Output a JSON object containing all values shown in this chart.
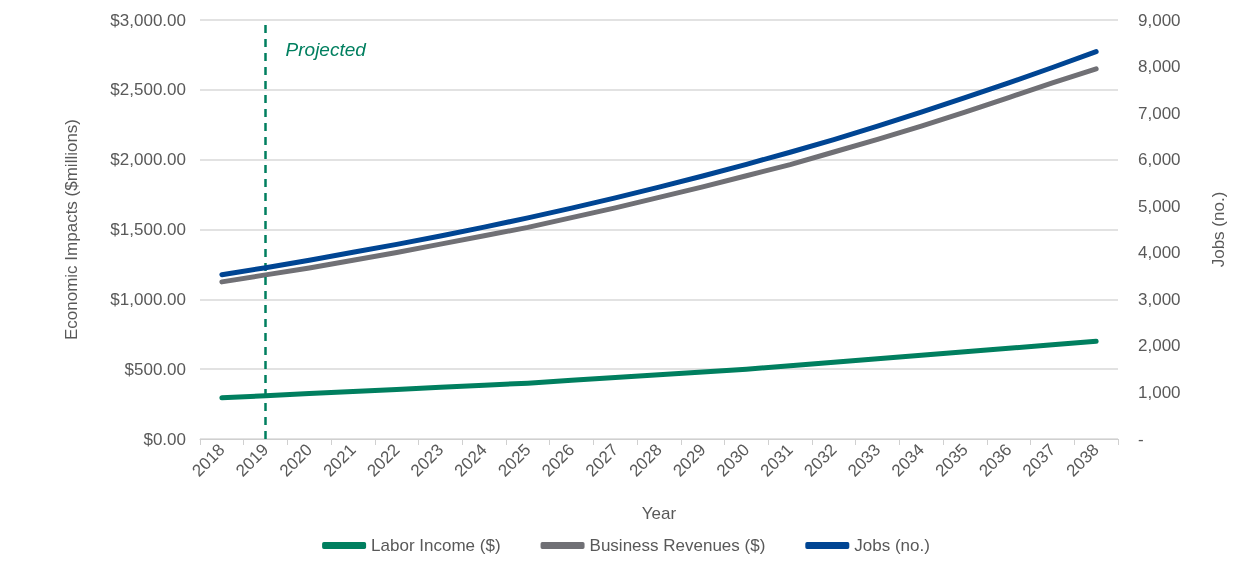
{
  "chart_data": {
    "type": "line",
    "xlabel": "Year",
    "ylabel": "Economic Impacts ($millions)",
    "y2label": "Jobs (no.)",
    "categories": [
      "2018",
      "2019",
      "2020",
      "2021",
      "2022",
      "2023",
      "2024",
      "2025",
      "2026",
      "2027",
      "2028",
      "2029",
      "2030",
      "2031",
      "2032",
      "2033",
      "2034",
      "2035",
      "2036",
      "2037",
      "2038"
    ],
    "series": [
      {
        "name": "Labor Income ($)",
        "color": "#007f5f",
        "values": [
          295,
          310,
          325,
          340,
          355,
          370,
          385,
          400,
          420,
          440,
          460,
          480,
          500,
          525,
          550,
          575,
          600,
          625,
          650,
          675,
          700
        ]
      },
      {
        "name": "Business Revenues ($)",
        "color": "#707075",
        "values": [
          1125,
          1175,
          1225,
          1280,
          1335,
          1395,
          1455,
          1515,
          1585,
          1655,
          1730,
          1805,
          1885,
          1965,
          2055,
          2145,
          2240,
          2340,
          2445,
          2550,
          2650
        ]
      },
      {
        "name": "Jobs (no.)",
        "color": "#004593",
        "axis": "y2",
        "values": [
          3530,
          3680,
          3840,
          4010,
          4180,
          4360,
          4550,
          4750,
          4960,
          5180,
          5410,
          5650,
          5900,
          6160,
          6430,
          6720,
          7020,
          7330,
          7650,
          7980,
          8320
        ]
      }
    ],
    "ylim": [
      0,
      3000
    ],
    "yticks": [
      {
        "value": 0,
        "label": "$0.00"
      },
      {
        "value": 500,
        "label": "$500.00"
      },
      {
        "value": 1000,
        "label": "$1,000.00"
      },
      {
        "value": 1500,
        "label": "$1,500.00"
      },
      {
        "value": 2000,
        "label": "$2,000.00"
      },
      {
        "value": 2500,
        "label": "$2,500.00"
      },
      {
        "value": 3000,
        "label": "$3,000.00"
      }
    ],
    "y2lim": [
      0,
      9000
    ],
    "y2ticks": [
      {
        "value": 0,
        "label": "-"
      },
      {
        "value": 1000,
        "label": "1,000"
      },
      {
        "value": 2000,
        "label": "2,000"
      },
      {
        "value": 3000,
        "label": "3,000"
      },
      {
        "value": 4000,
        "label": "4,000"
      },
      {
        "value": 5000,
        "label": "5,000"
      },
      {
        "value": 6000,
        "label": "6,000"
      },
      {
        "value": 7000,
        "label": "7,000"
      },
      {
        "value": 8000,
        "label": "8,000"
      },
      {
        "value": 9000,
        "label": "9,000"
      }
    ],
    "ref_lines": [
      {
        "axis": "x",
        "value": "2019",
        "label": "Projected",
        "color": "#007f5f",
        "line_style": "dashed"
      }
    ],
    "grid": "y",
    "legend": "bottom",
    "marker": "none",
    "line_style": "solid"
  }
}
